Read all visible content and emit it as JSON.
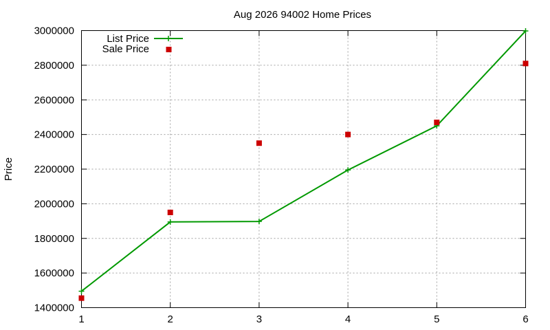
{
  "chart_data": {
    "type": "line",
    "title": "Aug 2026 94002 Home Prices",
    "xlabel": "",
    "ylabel": "Price",
    "x": [
      1,
      2,
      3,
      4,
      5,
      6
    ],
    "xlim": [
      1,
      6
    ],
    "ylim": [
      1400000,
      3000000
    ],
    "xticks": [
      "1",
      "2",
      "3",
      "4",
      "5",
      "6"
    ],
    "yticks": [
      "1400000",
      "1600000",
      "1800000",
      "2000000",
      "2200000",
      "2400000",
      "2600000",
      "2800000",
      "3000000"
    ],
    "grid": true,
    "legend_position": "top-left",
    "series": [
      {
        "name": "List Price",
        "style": "linespoints",
        "color": "#009900",
        "values": [
          1495000,
          1895000,
          1898000,
          2195000,
          2450000,
          2998000
        ]
      },
      {
        "name": "Sale Price",
        "style": "points",
        "color": "#cc0000",
        "values": [
          1455000,
          1950000,
          2350000,
          2400000,
          2470000,
          2810000
        ]
      }
    ]
  }
}
